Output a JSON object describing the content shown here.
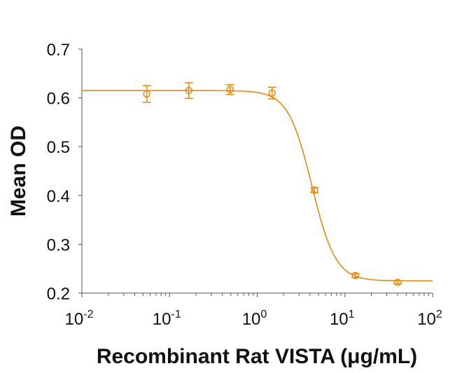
{
  "chart_data": {
    "type": "scatter",
    "title": "",
    "xlabel": "Recombinant Rat VISTA (μg/mL)",
    "ylabel": "Mean OD",
    "xscale": "log",
    "xlim": [
      0.01,
      100
    ],
    "ylim": [
      0.2,
      0.7
    ],
    "x_ticks": [
      {
        "value": 0.01,
        "base": "10",
        "exp": "-2"
      },
      {
        "value": 0.1,
        "base": "10",
        "exp": "-1"
      },
      {
        "value": 1,
        "base": "10",
        "exp": "0"
      },
      {
        "value": 10,
        "base": "10",
        "exp": "1"
      },
      {
        "value": 100,
        "base": "10",
        "exp": "2"
      }
    ],
    "y_ticks": [
      "0.2",
      "0.3",
      "0.4",
      "0.5",
      "0.6",
      "0.7"
    ],
    "grid": false,
    "legend": "none",
    "series": [
      {
        "name": "Mean OD",
        "color": "#E8890C",
        "marker": "open-circle",
        "x": [
          0.055,
          0.166,
          0.49,
          1.48,
          4.5,
          13.2,
          40
        ],
        "y": [
          0.608,
          0.615,
          0.617,
          0.61,
          0.411,
          0.236,
          0.222
        ],
        "error": [
          0.017,
          0.016,
          0.01,
          0.012,
          0.005,
          0.004,
          0.003
        ]
      }
    ],
    "fit": {
      "type": "4PL",
      "top": 0.615,
      "bottom": 0.225,
      "ec50": 4.2,
      "hill": 3.2,
      "color": "#E8890C"
    }
  }
}
